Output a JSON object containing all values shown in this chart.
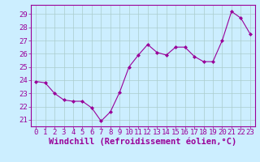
{
  "x": [
    0,
    1,
    2,
    3,
    4,
    5,
    6,
    7,
    8,
    9,
    10,
    11,
    12,
    13,
    14,
    15,
    16,
    17,
    18,
    19,
    20,
    21,
    22,
    23
  ],
  "y": [
    23.9,
    23.8,
    23.0,
    22.5,
    22.4,
    22.4,
    21.9,
    20.9,
    21.6,
    23.1,
    25.0,
    25.9,
    26.7,
    26.1,
    25.9,
    26.5,
    26.5,
    25.8,
    25.4,
    25.4,
    27.0,
    29.2,
    28.7,
    27.5
  ],
  "line_color": "#990099",
  "marker": "D",
  "marker_size": 2.0,
  "bg_color": "#cceeff",
  "grid_color": "#aacccc",
  "xlabel": "Windchill (Refroidissement éolien,°C)",
  "ylim": [
    20.5,
    29.7
  ],
  "yticks": [
    21,
    22,
    23,
    24,
    25,
    26,
    27,
    28,
    29
  ],
  "xticks": [
    0,
    1,
    2,
    3,
    4,
    5,
    6,
    7,
    8,
    9,
    10,
    11,
    12,
    13,
    14,
    15,
    16,
    17,
    18,
    19,
    20,
    21,
    22,
    23
  ],
  "tick_fontsize": 6.5,
  "label_fontsize": 7.5
}
